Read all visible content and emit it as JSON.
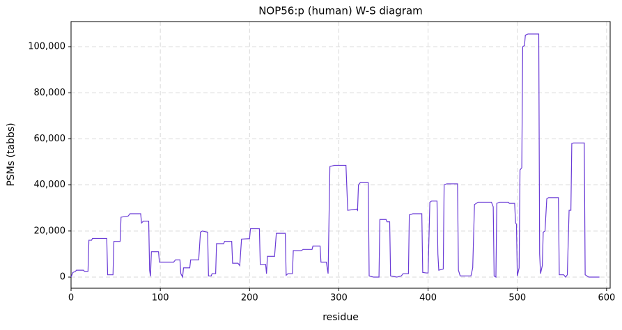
{
  "chart_data": {
    "type": "line",
    "title": "NOP56:p (human) W-S diagram",
    "xlabel": "residue",
    "ylabel": "PSMs (tabbs)",
    "xlim": [
      0,
      604
    ],
    "ylim": [
      -4830,
      110900
    ],
    "xticks": [
      0,
      100,
      200,
      300,
      400,
      500,
      600
    ],
    "yticks": [
      0,
      {
        "value": 20000,
        "label": "20,000"
      },
      {
        "value": 40000,
        "label": "40,000"
      },
      {
        "value": 60000,
        "label": "60,000"
      },
      {
        "value": 80000,
        "label": "80,000"
      },
      {
        "value": 100000,
        "label": "100,000"
      }
    ],
    "grid": true,
    "series": [
      {
        "color": "#6a3bd6",
        "x": [
          0,
          2,
          5,
          6,
          14,
          15,
          19,
          20,
          23,
          24,
          40,
          41,
          47,
          48,
          55,
          56,
          64,
          66,
          78,
          79,
          81,
          87,
          88,
          89,
          90,
          98,
          99,
          115,
          117,
          122,
          123,
          125,
          126,
          133,
          134,
          143,
          145,
          147,
          153,
          154,
          157,
          158,
          162,
          163,
          171,
          172,
          180,
          181,
          187,
          189,
          191,
          200,
          201,
          211,
          212,
          218,
          219,
          220,
          228,
          230,
          240,
          241,
          243,
          248,
          249,
          258,
          260,
          270,
          271,
          279,
          280,
          286,
          288,
          290,
          295,
          308,
          310,
          320,
          321,
          322,
          324,
          333,
          334,
          339,
          345,
          346,
          353,
          354,
          357,
          358,
          365,
          370,
          372,
          378,
          379,
          383,
          393,
          394,
          398,
          400,
          402,
          404,
          410,
          411,
          412,
          417,
          418,
          421,
          433,
          434,
          436,
          448,
          450,
          452,
          456,
          471,
          473,
          474,
          476,
          477,
          480,
          490,
          491,
          497,
          498,
          499,
          500,
          502,
          503,
          505,
          506,
          508,
          509,
          512,
          524,
          525,
          526,
          528,
          529,
          531,
          533,
          535,
          546,
          547,
          552,
          554,
          556,
          558,
          560,
          561,
          563,
          575,
          576,
          580,
          592
        ],
        "values": [
          0,
          2000,
          2500,
          3000,
          3000,
          2500,
          2500,
          16000,
          16000,
          16800,
          16800,
          1000,
          1000,
          15500,
          15500,
          26000,
          26500,
          27500,
          27500,
          23500,
          24300,
          24300,
          3000,
          300,
          11000,
          11000,
          6500,
          6500,
          7500,
          7500,
          1500,
          0,
          4000,
          4000,
          7500,
          7500,
          19500,
          20000,
          19500,
          500,
          500,
          1500,
          1500,
          14500,
          14500,
          15500,
          15500,
          6000,
          6000,
          5000,
          16500,
          16700,
          21000,
          21000,
          5500,
          5500,
          1500,
          9000,
          9000,
          19000,
          19000,
          800,
          1500,
          1500,
          11500,
          11500,
          12000,
          12000,
          13500,
          13500,
          6500,
          6500,
          1500,
          48000,
          48500,
          48500,
          29000,
          29500,
          29000,
          40000,
          41000,
          41000,
          500,
          0,
          0,
          25000,
          25000,
          24000,
          24000,
          500,
          0,
          500,
          1500,
          1500,
          27000,
          27500,
          27500,
          2000,
          1800,
          1800,
          32500,
          33000,
          33000,
          10000,
          3000,
          3500,
          40000,
          40500,
          40500,
          3000,
          500,
          500,
          4000,
          31500,
          32500,
          32500,
          30500,
          500,
          0,
          32000,
          32500,
          32500,
          32000,
          32000,
          23500,
          23000,
          500,
          4000,
          46500,
          47500,
          100000,
          100500,
          105000,
          105500,
          105500,
          10000,
          1500,
          5000,
          19500,
          20000,
          34000,
          34500,
          34500,
          1000,
          1000,
          0,
          1000,
          29000,
          29000,
          58000,
          58200,
          58200,
          1000,
          0,
          0
        ]
      }
    ]
  }
}
